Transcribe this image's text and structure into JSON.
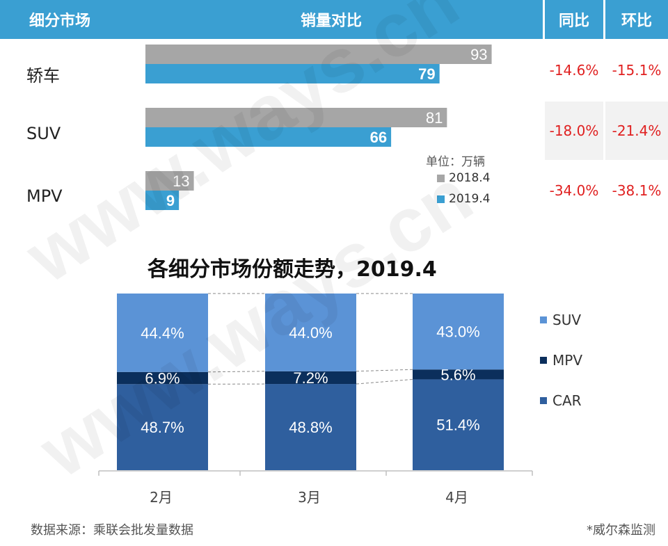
{
  "header": {
    "segment_label": "细分市场",
    "comparison_label": "销量对比",
    "yoy_label": "同比",
    "mom_label": "环比"
  },
  "chart_data": [
    {
      "type": "bar",
      "orientation": "horizontal",
      "categories": [
        "轿车",
        "SUV",
        "MPV"
      ],
      "series": [
        {
          "name": "2018.4",
          "values": [
            93,
            81,
            13
          ],
          "color": "#a6a6a6"
        },
        {
          "name": "2019.4",
          "values": [
            79,
            66,
            9
          ],
          "color": "#3a9fd2"
        }
      ],
      "unit": "单位：万辆",
      "yoy": [
        "-14.6%",
        "-18.0%",
        "-34.0%"
      ],
      "mom": [
        "-15.1%",
        "-21.4%",
        "-38.1%"
      ],
      "xlim": [
        0,
        100
      ],
      "legend": "bottom-right"
    },
    {
      "type": "bar",
      "stacked": true,
      "percent": true,
      "title": "各细分市场份额走势，2019.4",
      "categories": [
        "2月",
        "3月",
        "4月"
      ],
      "series": [
        {
          "name": "CAR",
          "values": [
            48.7,
            48.8,
            51.4
          ],
          "color": "#2f5f9e"
        },
        {
          "name": "MPV",
          "values": [
            6.9,
            7.2,
            5.6
          ],
          "color": "#0b2f5c"
        },
        {
          "name": "SUV",
          "values": [
            44.4,
            44.0,
            43.0
          ],
          "color": "#5b93d6"
        }
      ],
      "value_labels": [
        [
          "48.7%",
          "48.8%",
          "51.4%"
        ],
        [
          "6.9%",
          "7.2%",
          "5.6%"
        ],
        [
          "44.4%",
          "44.0%",
          "43.0%"
        ]
      ],
      "legend": "right",
      "ylim": [
        0,
        100
      ]
    }
  ],
  "footer": {
    "source": "数据来源：乘联会批发量数据",
    "note": "*威尔森监测"
  },
  "watermark_text": "www.ways.cn"
}
